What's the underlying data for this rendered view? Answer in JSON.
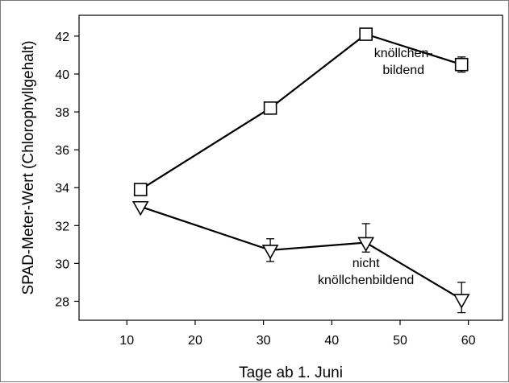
{
  "chart_data": {
    "type": "line",
    "xlabel": "Tage ab 1. Juni",
    "ylabel": "SPAD-Meter-Wert (Chlorophyllgehalt)",
    "xlim": [
      3,
      65
    ],
    "ylim": [
      27,
      43.1
    ],
    "xticks": [
      10,
      20,
      30,
      40,
      50,
      60
    ],
    "yticks": [
      28,
      30,
      32,
      34,
      36,
      38,
      40,
      42
    ],
    "grid": false,
    "series": [
      {
        "marker": "square",
        "x": [
          12,
          31,
          45,
          59
        ],
        "y": [
          33.9,
          38.2,
          42.1,
          40.5
        ],
        "err_low": [
          null,
          0.3,
          0.2,
          0.4
        ],
        "err_high": [
          null,
          0.3,
          0.2,
          0.4
        ]
      },
      {
        "marker": "triangle-down",
        "x": [
          12,
          31,
          45,
          59
        ],
        "y": [
          33.0,
          30.7,
          31.1,
          28.1
        ],
        "err_low": [
          null,
          0.6,
          0.5,
          0.7
        ],
        "err_high": [
          null,
          0.6,
          1.0,
          0.9
        ]
      }
    ],
    "annotations": [
      {
        "lines": [
          "knöllchen-",
          "bildend"
        ],
        "x": 50.5,
        "y": 40.9
      },
      {
        "lines": [
          "nicht",
          "knöllchenbildend"
        ],
        "x": 45,
        "y": 29.8
      }
    ]
  }
}
